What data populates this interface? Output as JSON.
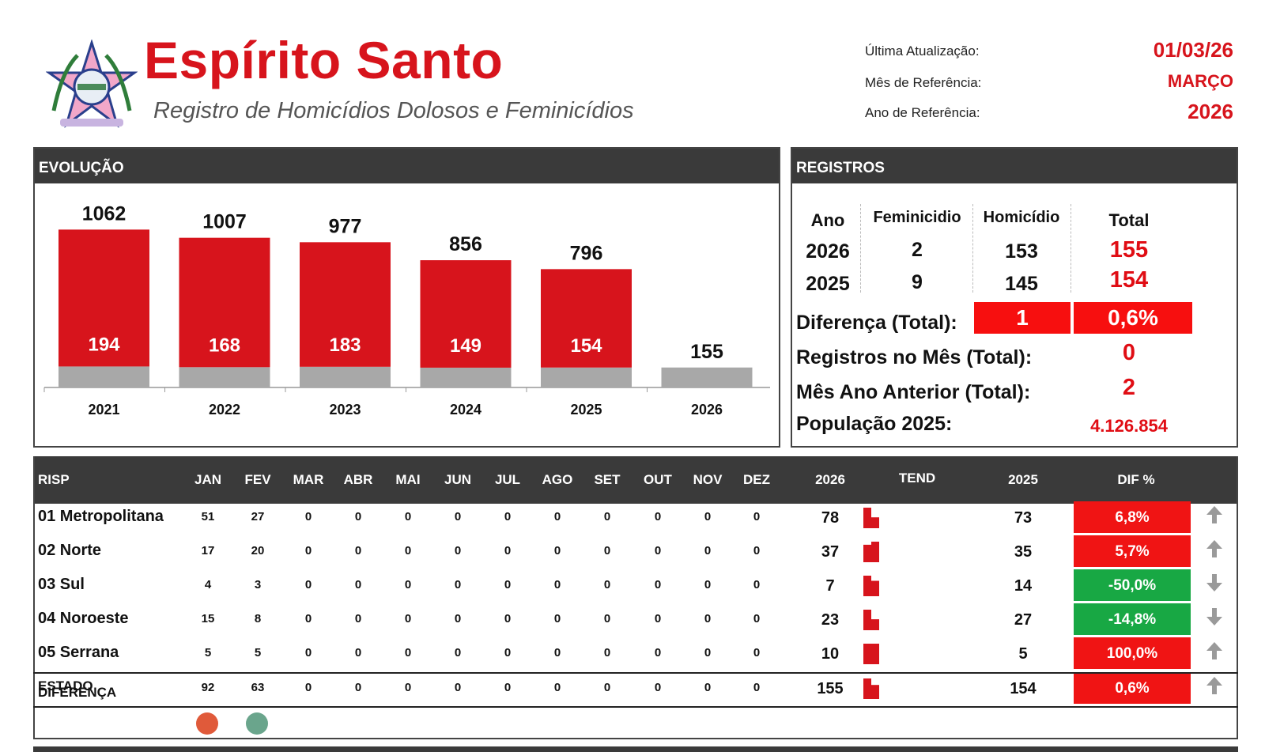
{
  "header": {
    "title": "Espírito Santo",
    "subtitle": "Registro de Homicídios Dolosos e Feminicídios",
    "meta": [
      {
        "label": "Última Atualização:",
        "value": "01/03/26"
      },
      {
        "label": "Mês de Referência:",
        "value": "MARÇO"
      },
      {
        "label": "Ano de Referência:",
        "value": "2026"
      }
    ]
  },
  "evolucao": {
    "heading": "EVOLUÇÃO"
  },
  "chart_data": {
    "type": "bar",
    "stacked": true,
    "categories": [
      "2021",
      "2022",
      "2023",
      "2024",
      "2025",
      "2026"
    ],
    "totals": [
      1062,
      1007,
      977,
      856,
      796,
      155
    ],
    "series": [
      {
        "values": [
          194,
          168,
          183,
          149,
          154,
          155
        ],
        "color": "#a8a8a8"
      },
      {
        "values": [
          868,
          839,
          794,
          707,
          642,
          0
        ],
        "color": "#d7141c"
      }
    ],
    "bar_labels": [
      "194",
      "168",
      "183",
      "149",
      "154",
      ""
    ],
    "ylim": [
      0,
      1250
    ],
    "grid": false,
    "legend": false
  },
  "registros": {
    "heading": "REGISTROS",
    "columns": [
      "Ano",
      "Feminicidio",
      "Homicídio",
      "Total"
    ],
    "rows": [
      {
        "ano": "2026",
        "feminicidio": "2",
        "homicidio": "153",
        "total": "155"
      },
      {
        "ano": "2025",
        "feminicidio": "9",
        "homicidio": "145",
        "total": "154"
      }
    ],
    "diferenca_label": "Diferença (Total):",
    "diferenca_abs": "1",
    "diferenca_pct": "0,6%",
    "mes_label": "Registros no Mês (Total):",
    "mes_value": "0",
    "anterior_label": "Mês Ano Anterior (Total):",
    "anterior_value": "2",
    "populacao_label": "População 2025:",
    "populacao_value": "4.126.854"
  },
  "tabela": {
    "headers": {
      "risp": "RISP",
      "months": [
        "JAN",
        "FEV",
        "MAR",
        "ABR",
        "MAI",
        "JUN",
        "JUL",
        "AGO",
        "SET",
        "OUT",
        "NOV",
        "DEZ"
      ],
      "y2026": "2026",
      "tend": "TEND",
      "y2025": "2025",
      "dif": "DIF %"
    },
    "rows": [
      {
        "name": "01 Metropolitana",
        "months": [
          "51",
          "27",
          "0",
          "0",
          "0",
          "0",
          "0",
          "0",
          "0",
          "0",
          "0",
          "0"
        ],
        "t2026": "78",
        "t2025": "73",
        "dif": "6,8%",
        "trend": "up",
        "spark": [
          51,
          27
        ]
      },
      {
        "name": "02 Norte",
        "months": [
          "17",
          "20",
          "0",
          "0",
          "0",
          "0",
          "0",
          "0",
          "0",
          "0",
          "0",
          "0"
        ],
        "t2026": "37",
        "t2025": "35",
        "dif": "5,7%",
        "trend": "up",
        "spark": [
          17,
          20
        ]
      },
      {
        "name": "03 Sul",
        "months": [
          "4",
          "3",
          "0",
          "0",
          "0",
          "0",
          "0",
          "0",
          "0",
          "0",
          "0",
          "0"
        ],
        "t2026": "7",
        "t2025": "14",
        "dif": "-50,0%",
        "trend": "down",
        "spark": [
          4,
          3
        ]
      },
      {
        "name": "04 Noroeste",
        "months": [
          "15",
          "8",
          "0",
          "0",
          "0",
          "0",
          "0",
          "0",
          "0",
          "0",
          "0",
          "0"
        ],
        "t2026": "23",
        "t2025": "27",
        "dif": "-14,8%",
        "trend": "down",
        "spark": [
          15,
          8
        ]
      },
      {
        "name": "05 Serrana",
        "months": [
          "5",
          "5",
          "0",
          "0",
          "0",
          "0",
          "0",
          "0",
          "0",
          "0",
          "0",
          "0"
        ],
        "t2026": "10",
        "t2025": "5",
        "dif": "100,0%",
        "trend": "up",
        "spark": [
          5,
          5
        ]
      }
    ],
    "estado": {
      "name": "ESTADO",
      "months": [
        "92",
        "63",
        "0",
        "0",
        "0",
        "0",
        "0",
        "0",
        "0",
        "0",
        "0",
        "0"
      ],
      "t2026": "155",
      "t2025": "154",
      "dif": "0,6%",
      "trend": "up",
      "spark": [
        92,
        63
      ]
    },
    "diferenca": {
      "name": "DIFERENÇA",
      "dots": [
        "#e05a3a",
        "#6aa58c"
      ]
    },
    "colors": {
      "up": "#f01414",
      "down": "#18a844",
      "arrow": "#9a9a9a",
      "spark": "#d7141c"
    }
  }
}
